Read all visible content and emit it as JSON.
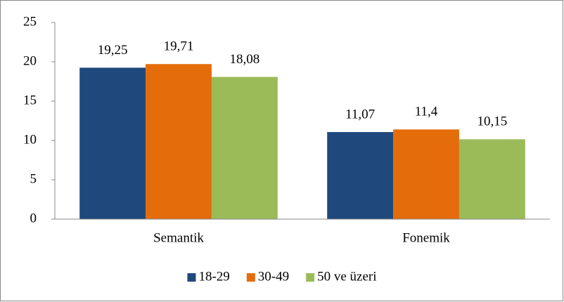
{
  "chart_data": {
    "type": "bar",
    "categories": [
      "Semantik",
      "Fonemik"
    ],
    "series": [
      {
        "name": "18-29",
        "color": "#1f497d",
        "values": [
          19.25,
          11.07
        ],
        "value_labels": [
          "19,25",
          "11,07"
        ]
      },
      {
        "name": "30-49",
        "color": "#e46c0a",
        "values": [
          19.71,
          11.4
        ],
        "value_labels": [
          "19,71",
          "11,4"
        ]
      },
      {
        "name": "50 ve üzeri",
        "color": "#9bbb59",
        "values": [
          18.08,
          10.15
        ],
        "value_labels": [
          "18,08",
          "10,15"
        ]
      }
    ],
    "ylim": [
      0,
      25
    ],
    "yticks": [
      0,
      5,
      10,
      15,
      20,
      25
    ],
    "grid": false,
    "legend": "bottom"
  }
}
